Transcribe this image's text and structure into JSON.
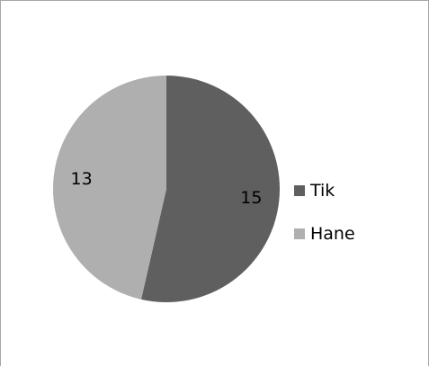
{
  "chart_data": {
    "type": "pie",
    "title": "",
    "categories": [
      "Tik",
      "Hane"
    ],
    "values": [
      15,
      13
    ],
    "colors": [
      "#5f5f5f",
      "#afafaf"
    ],
    "data_labels": [
      "15",
      "13"
    ],
    "legend": {
      "position": "right",
      "entries": [
        "Tik",
        "Hane"
      ]
    }
  }
}
